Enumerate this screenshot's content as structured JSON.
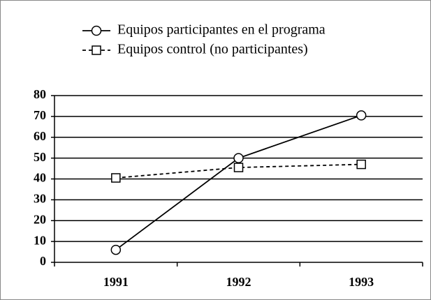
{
  "chart_data": {
    "type": "line",
    "categories": [
      "1991",
      "1992",
      "1993"
    ],
    "series": [
      {
        "name": "Equipos participantes en el programa",
        "color": "#000000",
        "marker": "circle",
        "dash": "solid",
        "values": [
          6,
          50,
          70.5
        ]
      },
      {
        "name": "Equipos control (no participantes)",
        "color": "#000000",
        "marker": "square",
        "dash": "dashed",
        "values": [
          40.5,
          45.5,
          47
        ]
      }
    ],
    "ylim": [
      0,
      80
    ],
    "yticks": [
      0,
      10,
      20,
      30,
      40,
      50,
      60,
      70,
      80
    ],
    "grid": true,
    "legend": "top"
  }
}
